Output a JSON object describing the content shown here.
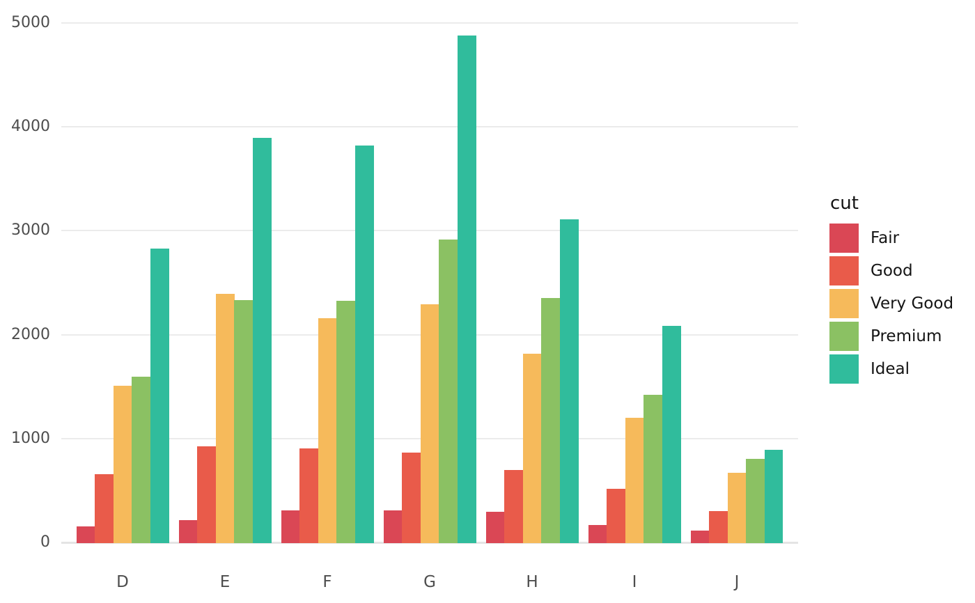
{
  "figure": {
    "background": "#FFFFFF",
    "grid_color": "#EBEBEB",
    "axis_line_color": "#E4E4E4",
    "tick_label_color": "#4D4D4D",
    "legend_text_color": "#141414"
  },
  "chart_data": {
    "type": "bar",
    "title": "",
    "xlabel": "",
    "ylabel": "",
    "categories": [
      "D",
      "E",
      "F",
      "G",
      "H",
      "I",
      "J"
    ],
    "series": [
      {
        "name": "Fair",
        "color": "#DA4755",
        "values": [
          163,
          224,
          312,
          314,
          303,
          175,
          119
        ]
      },
      {
        "name": "Good",
        "color": "#E95B4A",
        "values": [
          662,
          933,
          909,
          871,
          702,
          522,
          307
        ]
      },
      {
        "name": "Very Good",
        "color": "#F6BA5B",
        "values": [
          1513,
          2400,
          2164,
          2299,
          1824,
          1204,
          678
        ]
      },
      {
        "name": "Premium",
        "color": "#8BC163",
        "values": [
          1603,
          2337,
          2331,
          2924,
          2360,
          1428,
          808
        ]
      },
      {
        "name": "Ideal",
        "color": "#30BC9C",
        "values": [
          2834,
          3903,
          3826,
          4884,
          3115,
          2093,
          896
        ]
      }
    ],
    "yticks": [
      0,
      1000,
      2000,
      3000,
      4000,
      5000
    ],
    "ylim": [
      0,
      5000
    ],
    "grid": "horizontal-major-only",
    "bar_mode": "grouped",
    "legend": {
      "title": "cut",
      "position": "right"
    }
  }
}
